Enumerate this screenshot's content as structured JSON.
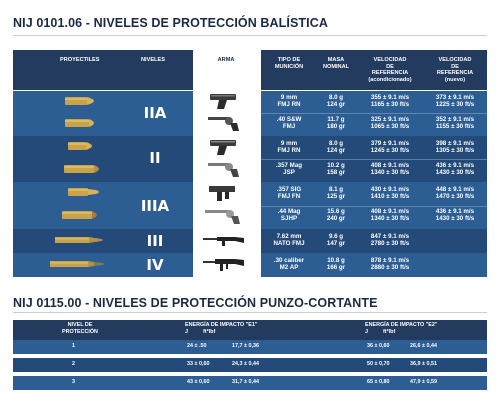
{
  "title1": "NIJ 0101.06 - NIVELES DE PROTECCIÓN BALÍSTICA",
  "title2": "NIJ 0115.00 - NIVELES DE PROTECCIÓN PUNZO-CORTANTE",
  "header": {
    "proyectiles": "PROYECTILES",
    "niveles": "NIVELES",
    "arma": "ARMA",
    "tipo": [
      "TIPO DE",
      "MUNICIÓN"
    ],
    "masa": [
      "MASA",
      "NOMINAL"
    ],
    "vel_ref": [
      "VELOCIDAD",
      "DE",
      "REFERENCIA",
      "(acondicionado)"
    ],
    "vel_ref2": [
      "VELOCIDAD",
      "DE",
      "REFERENCIA",
      "(nuevo)"
    ]
  },
  "levels": [
    "IIA",
    "II",
    "IIIA",
    "III",
    "IV"
  ],
  "rows": [
    {
      "tipo": [
        "9 mm",
        "FMJ RN"
      ],
      "masa": [
        "8.0 g",
        "124 gr"
      ],
      "v1": [
        "355 ± 9.1 m/s",
        "1165 ± 30 ft/s"
      ],
      "v2": [
        "373 ± 9.1 m/s",
        "1225 ± 30 ft/s"
      ]
    },
    {
      "tipo": [
        ".40 S&W",
        "FMJ"
      ],
      "masa": [
        "11.7 g",
        "180 gr"
      ],
      "v1": [
        "325 ± 9.1 m/s",
        "1065 ± 30 ft/s"
      ],
      "v2": [
        "352 ± 9.1 m/s",
        "1155 ± 30 ft/s"
      ]
    },
    {
      "tipo": [
        "9 mm",
        "FMJ RN"
      ],
      "masa": [
        "8.0 g",
        "124 gr"
      ],
      "v1": [
        "379 ± 9.1 m/s",
        "1245 ± 30 ft/s"
      ],
      "v2": [
        "398 ± 9.1 m/s",
        "1305 ± 30 ft/s"
      ]
    },
    {
      "tipo": [
        ".357 Mag",
        "JSP"
      ],
      "masa": [
        "10.2 g",
        "158 gr"
      ],
      "v1": [
        "408 ± 9.1 m/s",
        "1340 ± 30 ft/s"
      ],
      "v2": [
        "436 ± 9.1 m/s",
        "1430 ± 30 ft/s"
      ]
    },
    {
      "tipo": [
        ".357 SIG",
        "FMJ FN"
      ],
      "masa": [
        "8.1 g",
        "125 gr"
      ],
      "v1": [
        "430 ± 9.1 m/s",
        "1410 ± 30 ft/s"
      ],
      "v2": [
        "448 ± 9.1 m/s",
        "1470 ± 30 ft/s"
      ]
    },
    {
      "tipo": [
        ".44 Mag",
        "SJHP"
      ],
      "masa": [
        "15.6 g",
        "240 gr"
      ],
      "v1": [
        "408 ± 9.1 m/s",
        "1340 ± 30 ft/s"
      ],
      "v2": [
        "436 ± 9.1 m/s",
        "1430 ± 30 ft/s"
      ]
    },
    {
      "tipo": [
        "7.62 mm",
        "NATO FMJ"
      ],
      "masa": [
        "9.6 g",
        "147 gr"
      ],
      "v1": [
        "847 ± 9.1 m/s",
        "2780 ± 30 ft/s"
      ],
      "v2": []
    },
    {
      "tipo": [
        ".30 caliber",
        "M2 AP"
      ],
      "masa": [
        "10.8 g",
        "166 gr"
      ],
      "v1": [
        "878 ± 9.1 m/s",
        "2880 ± 30 ft/s"
      ],
      "v2": []
    }
  ],
  "stab": {
    "h_nivel": [
      "NIVEL DE",
      "PROTECCIÓN"
    ],
    "h_e1": [
      "ENERGÍA DE IMPACTO \"E1\"",
      "J          ft*lbf"
    ],
    "h_e2": [
      "ENERGÍA DE IMPACTO \"E2\"",
      "J          ft*lbf"
    ],
    "rows": [
      {
        "lvl": "1",
        "e1j": "24 ± .50",
        "e1f": "17,7 ± 0,36",
        "e2j": "36 ± 0,60",
        "e2f": "26,6 ± 0,44"
      },
      {
        "lvl": "2",
        "e1j": "33 ± 0,60",
        "e1f": "24,3 ± 0,44",
        "e2j": "50 ± 0,70",
        "e2f": "36,9 ± 0,51"
      },
      {
        "lvl": "3",
        "e1j": "43 ± 0,60",
        "e1f": "31,7 ± 0,44",
        "e2j": "65 ± 0,80",
        "e2f": "47,9 ± 0,59"
      }
    ]
  },
  "colors": {
    "header": "#233b5f",
    "band_light": "#2c5e93",
    "band_dark": "#234a78",
    "brass": "#c9a24a"
  }
}
